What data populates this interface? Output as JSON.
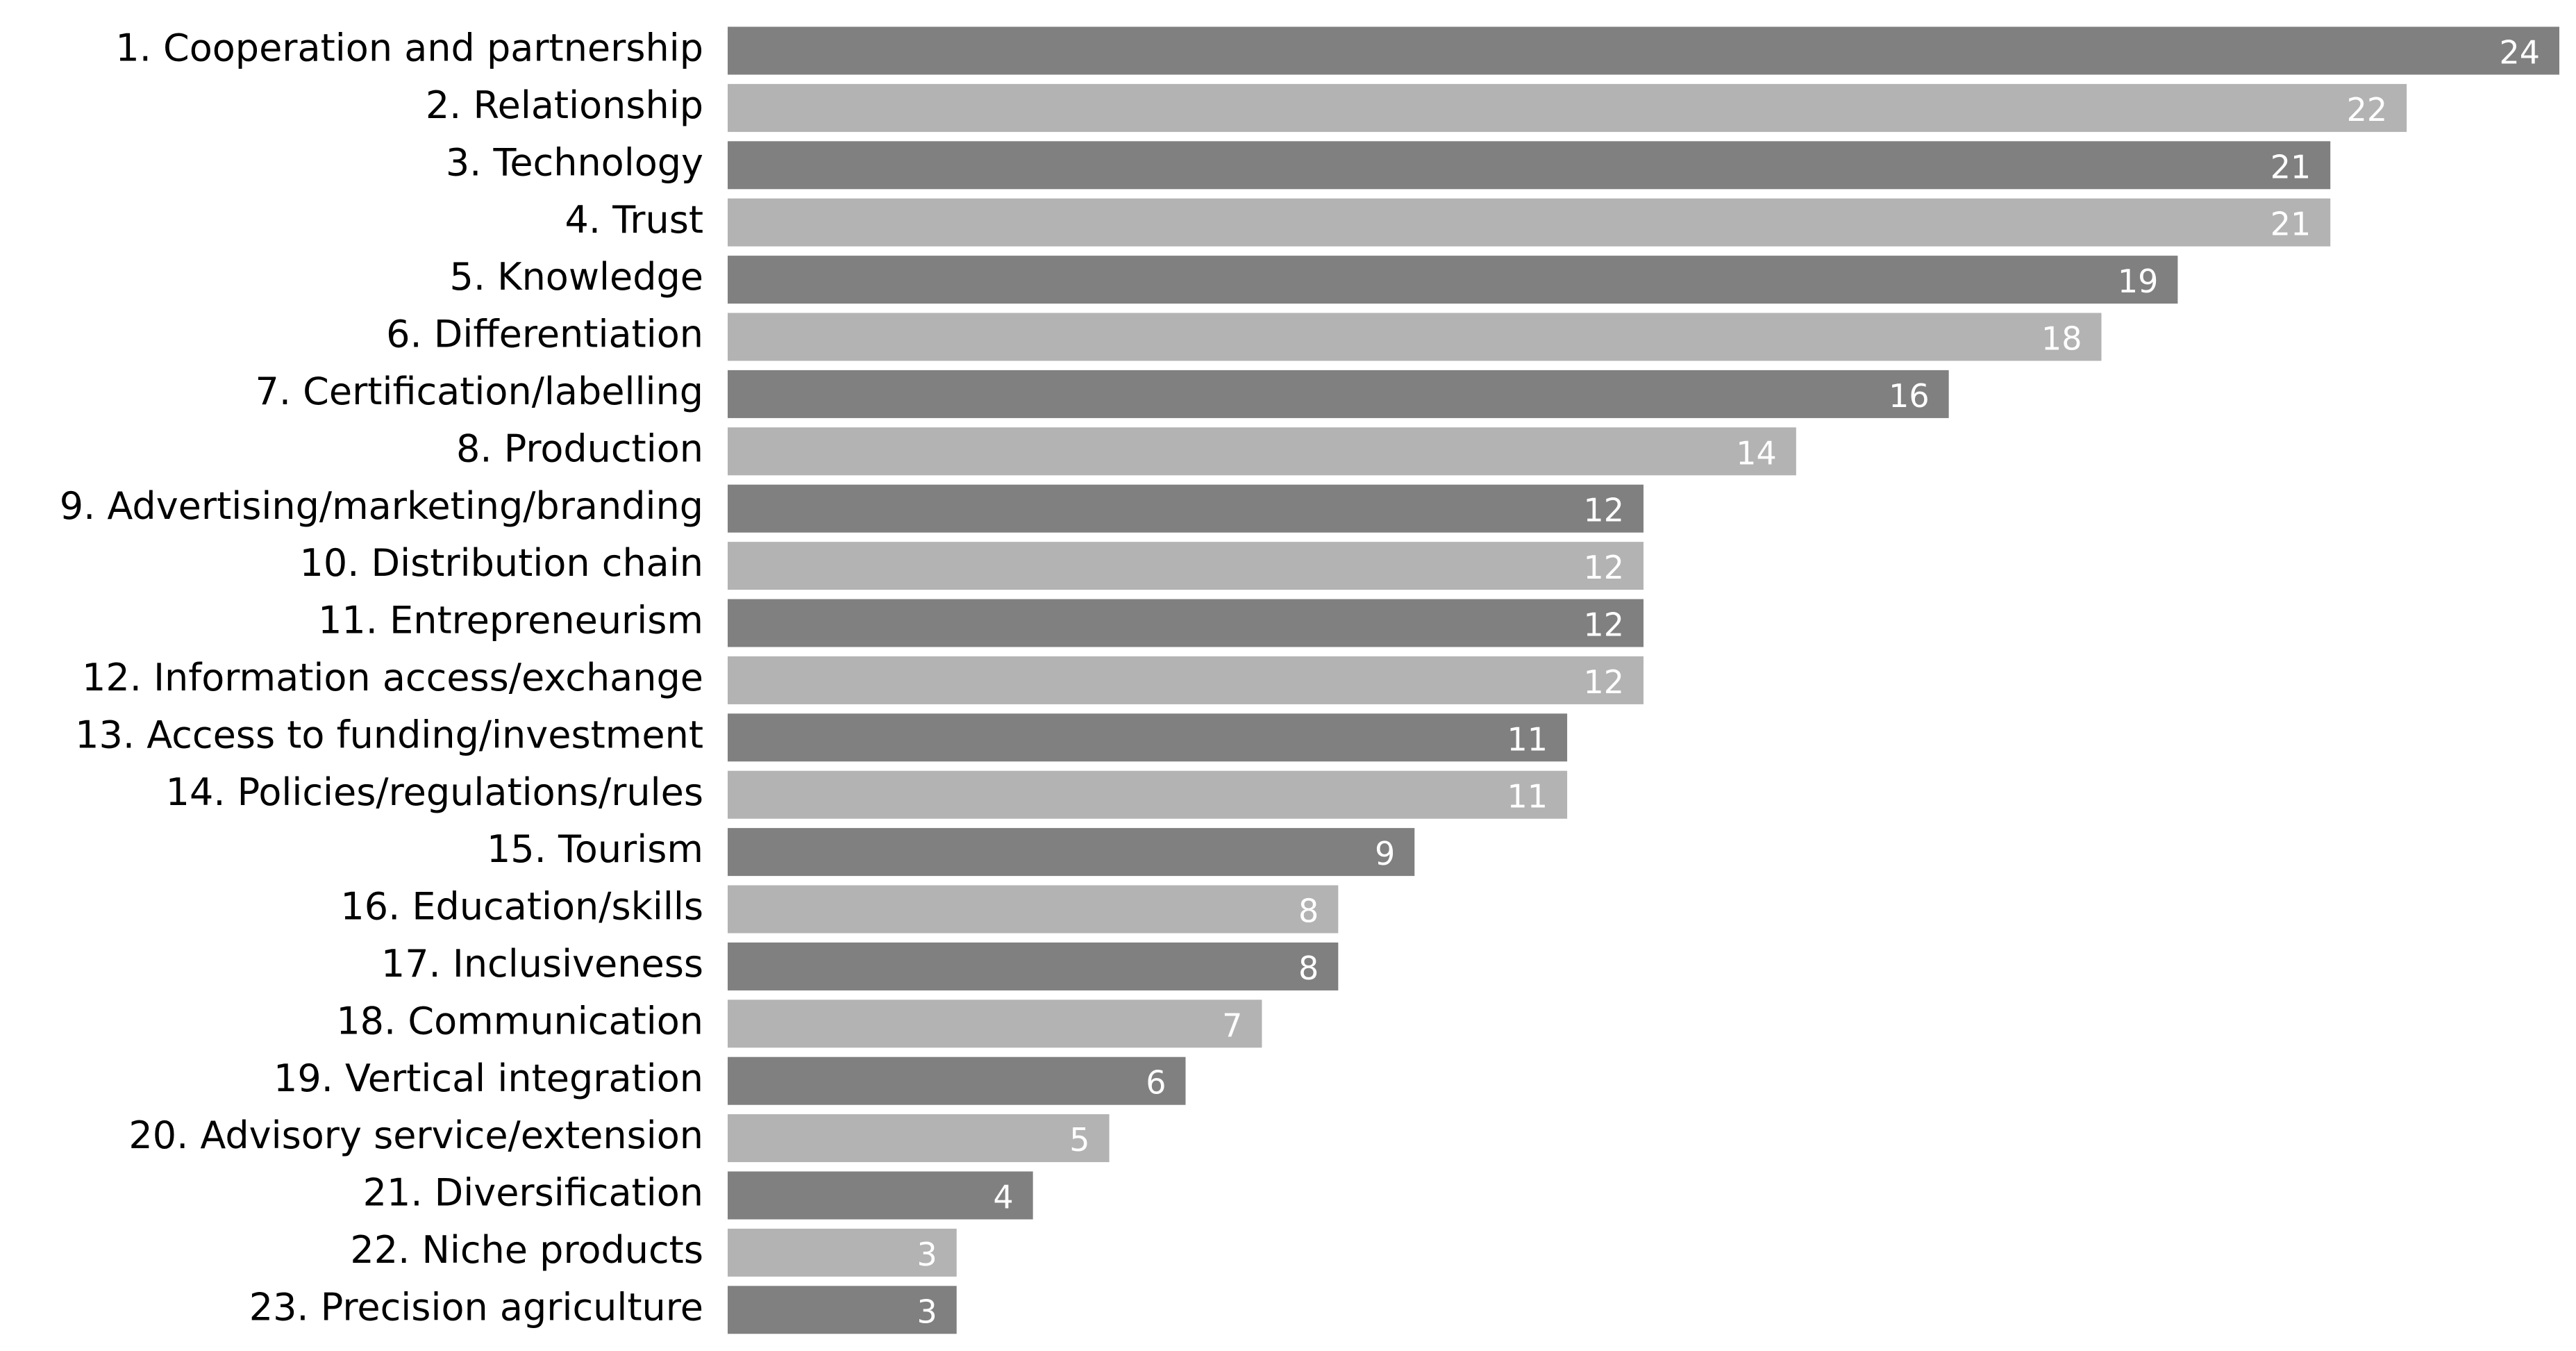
{
  "chart_data": {
    "type": "bar",
    "orientation": "horizontal",
    "categories": [
      "1. Cooperation and partnership",
      "2. Relationship",
      "3. Technology",
      "4. Trust",
      "5. Knowledge",
      "6. Differentiation",
      "7. Certification/labelling",
      "8. Production",
      "9. Advertising/marketing/branding",
      "10. Distribution chain",
      "11. Entrepreneurism",
      "12. Information access/exchange",
      "13. Access to funding/investment",
      "14. Policies/regulations/rules",
      "15. Tourism",
      "16. Education/skills",
      "17. Inclusiveness",
      "18. Communication",
      "19. Vertical integration",
      "20. Advisory service/extension",
      "21. Diversification",
      "22. Niche products",
      "23. Precision agriculture"
    ],
    "values": [
      24,
      22,
      21,
      21,
      19,
      18,
      16,
      14,
      12,
      12,
      12,
      12,
      11,
      11,
      9,
      8,
      8,
      7,
      6,
      5,
      4,
      3,
      3
    ],
    "colors": [
      "#808080",
      "#b3b3b3"
    ],
    "data_labels": true
  }
}
